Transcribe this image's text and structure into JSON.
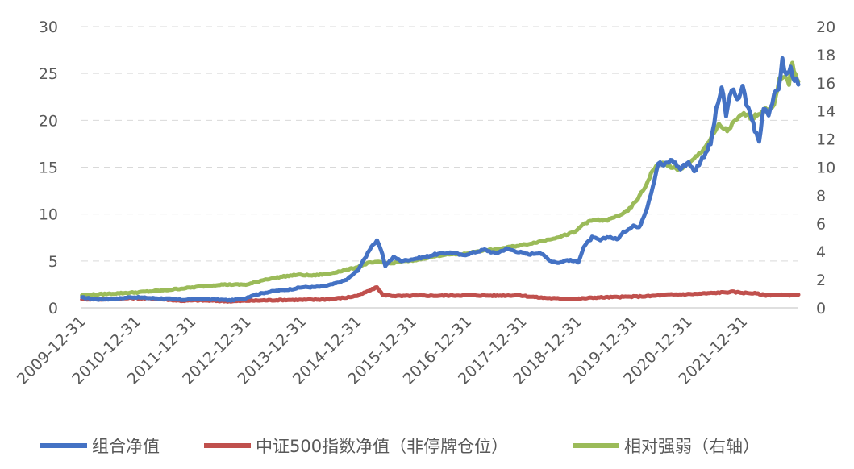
{
  "chart_data": {
    "type": "line",
    "title": "",
    "xlabel": "",
    "ylabel": "",
    "ylim_left": [
      0,
      30
    ],
    "yticks_left": [
      "0",
      "5",
      "10",
      "15",
      "20",
      "25",
      "30"
    ],
    "ylim_right": [
      0,
      20
    ],
    "yticks_right": [
      "0",
      "2",
      "4",
      "6",
      "8",
      "10",
      "12",
      "14",
      "16",
      "18",
      "20"
    ],
    "grid": "horizontal dashed",
    "legend_position": "bottom",
    "x_tick_labels": [
      "2009-12-31",
      "2010-12-31",
      "2011-12-31",
      "2012-12-31",
      "2013-12-31",
      "2014-12-31",
      "2015-12-31",
      "2016-12-31",
      "2017-12-31",
      "2018-12-31",
      "2019-12-31",
      "2020-12-31",
      "2021-12-31"
    ],
    "x_range_years": [
      2009.99,
      2022.99
    ],
    "series": [
      {
        "name": "组合净值",
        "axis": "left",
        "color": "#4472C4",
        "points": [
          [
            2010.0,
            1.1
          ],
          [
            2010.3,
            0.9
          ],
          [
            2010.6,
            0.95
          ],
          [
            2010.9,
            1.15
          ],
          [
            2011.2,
            1.05
          ],
          [
            2011.5,
            1.0
          ],
          [
            2011.8,
            0.85
          ],
          [
            2012.1,
            0.95
          ],
          [
            2012.4,
            0.9
          ],
          [
            2012.7,
            0.8
          ],
          [
            2012.95,
            1.0
          ],
          [
            2013.1,
            1.35
          ],
          [
            2013.3,
            1.6
          ],
          [
            2013.5,
            1.8
          ],
          [
            2013.8,
            2.0
          ],
          [
            2014.0,
            2.2
          ],
          [
            2014.2,
            2.2
          ],
          [
            2014.4,
            2.3
          ],
          [
            2014.6,
            2.6
          ],
          [
            2014.8,
            3.0
          ],
          [
            2015.0,
            4.0
          ],
          [
            2015.15,
            5.5
          ],
          [
            2015.25,
            6.6
          ],
          [
            2015.35,
            7.1
          ],
          [
            2015.42,
            6.2
          ],
          [
            2015.5,
            4.5
          ],
          [
            2015.58,
            5.0
          ],
          [
            2015.65,
            5.4
          ],
          [
            2015.8,
            5.0
          ],
          [
            2016.0,
            5.2
          ],
          [
            2016.2,
            5.4
          ],
          [
            2016.4,
            5.7
          ],
          [
            2016.7,
            5.9
          ],
          [
            2016.9,
            5.6
          ],
          [
            2017.1,
            5.9
          ],
          [
            2017.3,
            6.2
          ],
          [
            2017.5,
            5.8
          ],
          [
            2017.7,
            6.3
          ],
          [
            2017.9,
            6.0
          ],
          [
            2018.1,
            5.7
          ],
          [
            2018.3,
            5.9
          ],
          [
            2018.5,
            5.0
          ],
          [
            2018.65,
            4.8
          ],
          [
            2018.8,
            5.1
          ],
          [
            2019.0,
            4.9
          ],
          [
            2019.1,
            6.5
          ],
          [
            2019.25,
            7.5
          ],
          [
            2019.4,
            7.2
          ],
          [
            2019.55,
            7.6
          ],
          [
            2019.7,
            7.3
          ],
          [
            2019.85,
            8.2
          ],
          [
            2020.0,
            8.8
          ],
          [
            2020.1,
            8.5
          ],
          [
            2020.25,
            10.8
          ],
          [
            2020.35,
            13.0
          ],
          [
            2020.45,
            15.5
          ],
          [
            2020.55,
            15.2
          ],
          [
            2020.7,
            15.8
          ],
          [
            2020.85,
            14.8
          ],
          [
            2021.0,
            15.6
          ],
          [
            2021.1,
            14.5
          ],
          [
            2021.25,
            16.0
          ],
          [
            2021.4,
            17.5
          ],
          [
            2021.5,
            21.0
          ],
          [
            2021.6,
            23.5
          ],
          [
            2021.68,
            20.5
          ],
          [
            2021.78,
            23.5
          ],
          [
            2021.88,
            22.0
          ],
          [
            2021.98,
            23.8
          ],
          [
            2022.05,
            21.5
          ],
          [
            2022.12,
            20.8
          ],
          [
            2022.2,
            19.0
          ],
          [
            2022.28,
            17.7
          ],
          [
            2022.36,
            21.5
          ],
          [
            2022.45,
            20.8
          ],
          [
            2022.55,
            22.5
          ],
          [
            2022.63,
            23.5
          ],
          [
            2022.7,
            26.3
          ],
          [
            2022.77,
            24.8
          ],
          [
            2022.85,
            25.5
          ],
          [
            2022.92,
            24.5
          ],
          [
            2022.99,
            23.8
          ]
        ]
      },
      {
        "name": "中证500指数净值（非停牌仓位）",
        "axis": "left",
        "color": "#C0504D",
        "points": [
          [
            2010.0,
            0.95
          ],
          [
            2010.3,
            0.9
          ],
          [
            2010.6,
            0.95
          ],
          [
            2010.9,
            1.05
          ],
          [
            2011.2,
            1.0
          ],
          [
            2011.5,
            0.9
          ],
          [
            2011.8,
            0.75
          ],
          [
            2012.1,
            0.8
          ],
          [
            2012.4,
            0.75
          ],
          [
            2012.7,
            0.7
          ],
          [
            2012.95,
            0.75
          ],
          [
            2013.3,
            0.8
          ],
          [
            2013.7,
            0.85
          ],
          [
            2014.0,
            0.85
          ],
          [
            2014.4,
            0.9
          ],
          [
            2014.8,
            1.1
          ],
          [
            2015.0,
            1.3
          ],
          [
            2015.2,
            1.8
          ],
          [
            2015.35,
            2.2
          ],
          [
            2015.45,
            1.4
          ],
          [
            2015.6,
            1.3
          ],
          [
            2015.8,
            1.25
          ],
          [
            2016.0,
            1.3
          ],
          [
            2016.5,
            1.3
          ],
          [
            2017.0,
            1.35
          ],
          [
            2017.5,
            1.3
          ],
          [
            2017.9,
            1.35
          ],
          [
            2018.3,
            1.1
          ],
          [
            2018.6,
            1.0
          ],
          [
            2018.95,
            0.95
          ],
          [
            2019.3,
            1.1
          ],
          [
            2019.7,
            1.15
          ],
          [
            2020.0,
            1.2
          ],
          [
            2020.3,
            1.25
          ],
          [
            2020.6,
            1.4
          ],
          [
            2020.9,
            1.45
          ],
          [
            2021.2,
            1.5
          ],
          [
            2021.5,
            1.6
          ],
          [
            2021.8,
            1.7
          ],
          [
            2022.0,
            1.6
          ],
          [
            2022.2,
            1.55
          ],
          [
            2022.4,
            1.35
          ],
          [
            2022.6,
            1.4
          ],
          [
            2022.8,
            1.35
          ],
          [
            2022.99,
            1.4
          ]
        ]
      },
      {
        "name": "相对强弱（右轴）",
        "axis": "right",
        "color": "#9BBB59",
        "points": [
          [
            2010.0,
            0.9
          ],
          [
            2010.5,
            1.0
          ],
          [
            2011.0,
            1.1
          ],
          [
            2011.5,
            1.25
          ],
          [
            2012.0,
            1.45
          ],
          [
            2012.5,
            1.65
          ],
          [
            2013.0,
            1.65
          ],
          [
            2013.3,
            2.0
          ],
          [
            2013.6,
            2.2
          ],
          [
            2013.9,
            2.35
          ],
          [
            2014.2,
            2.3
          ],
          [
            2014.5,
            2.45
          ],
          [
            2014.8,
            2.7
          ],
          [
            2015.0,
            2.9
          ],
          [
            2015.2,
            3.2
          ],
          [
            2015.4,
            3.25
          ],
          [
            2015.6,
            3.15
          ],
          [
            2015.8,
            3.3
          ],
          [
            2016.0,
            3.35
          ],
          [
            2016.3,
            3.6
          ],
          [
            2016.6,
            3.8
          ],
          [
            2016.9,
            3.8
          ],
          [
            2017.2,
            4.05
          ],
          [
            2017.5,
            4.15
          ],
          [
            2017.8,
            4.35
          ],
          [
            2018.1,
            4.55
          ],
          [
            2018.4,
            4.8
          ],
          [
            2018.7,
            5.1
          ],
          [
            2018.95,
            5.4
          ],
          [
            2019.1,
            6.0
          ],
          [
            2019.3,
            6.25
          ],
          [
            2019.5,
            6.2
          ],
          [
            2019.7,
            6.5
          ],
          [
            2019.9,
            6.9
          ],
          [
            2020.05,
            7.6
          ],
          [
            2020.2,
            8.5
          ],
          [
            2020.35,
            9.8
          ],
          [
            2020.5,
            10.3
          ],
          [
            2020.65,
            10.1
          ],
          [
            2020.8,
            9.8
          ],
          [
            2021.0,
            10.2
          ],
          [
            2021.1,
            10.6
          ],
          [
            2021.25,
            11.2
          ],
          [
            2021.4,
            12.0
          ],
          [
            2021.55,
            13.0
          ],
          [
            2021.7,
            12.6
          ],
          [
            2021.85,
            13.3
          ],
          [
            2022.0,
            13.8
          ],
          [
            2022.15,
            13.5
          ],
          [
            2022.3,
            13.9
          ],
          [
            2022.45,
            14.2
          ],
          [
            2022.55,
            14.4
          ],
          [
            2022.65,
            16.2
          ],
          [
            2022.75,
            16.4
          ],
          [
            2022.82,
            16.0
          ],
          [
            2022.88,
            17.3
          ],
          [
            2022.94,
            16.6
          ],
          [
            2022.99,
            16.1
          ]
        ]
      }
    ]
  }
}
